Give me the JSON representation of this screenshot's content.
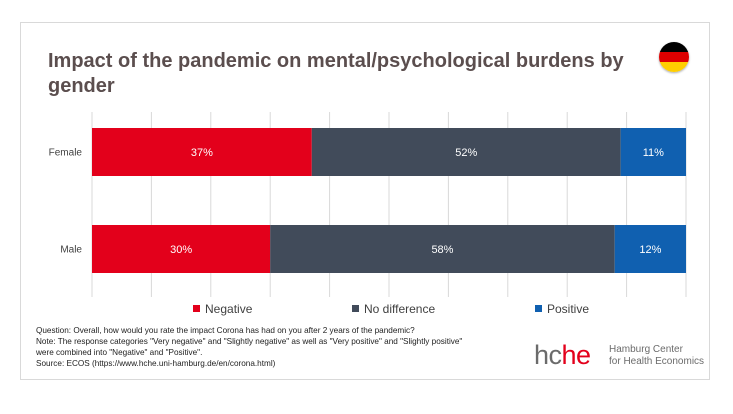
{
  "title": "Impact of the pandemic on mental/psychological burdens by gender",
  "flag_icon": "germany-flag-icon",
  "colors": {
    "negative": "#e3001b",
    "no_difference": "#414b5a",
    "positive": "#1060b0"
  },
  "chart_data": {
    "type": "bar",
    "orientation": "horizontal",
    "stacked": true,
    "title": "Impact of the pandemic on mental/psychological burdens by gender",
    "categories": [
      "Female",
      "Male"
    ],
    "series": [
      {
        "name": "Negative",
        "values": [
          37,
          30
        ],
        "labels": [
          "37%",
          "30%"
        ]
      },
      {
        "name": "No difference",
        "values": [
          52,
          58
        ],
        "labels": [
          "52%",
          "58%"
        ]
      },
      {
        "name": "Positive",
        "values": [
          11,
          12
        ],
        "labels": [
          "11%",
          "12%"
        ]
      }
    ],
    "xlim": [
      0,
      100
    ],
    "grid": true,
    "legend": "bottom"
  },
  "notes": {
    "question": "Question: Overall, how would you rate the impact Corona has had on you after 2 years of the pandemic?",
    "note_line1": "Note: The response categories \"Very negative\" and \"Slightly negative\" as well as \"Very positive\" and \"Slightly positive\"",
    "note_line2": "were combined into \"Negative\" and \"Positive\".",
    "source": "Source: ECOS (https://www.hche.uni-hamburg.de/en/corona.html)"
  },
  "logo": {
    "mark_a": "hc",
    "mark_b": "he",
    "line1": "Hamburg Center",
    "line2": "for Health Economics"
  }
}
